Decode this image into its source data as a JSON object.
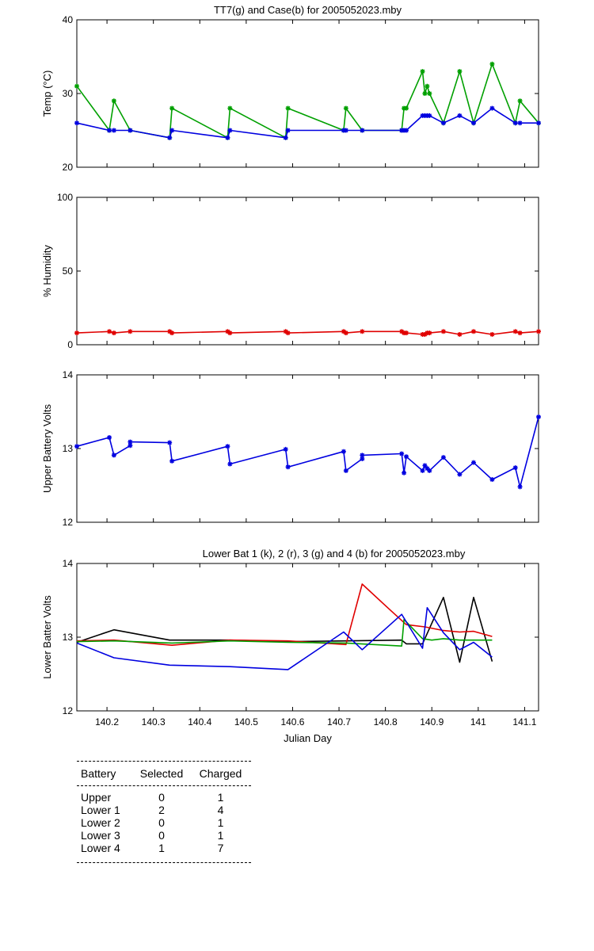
{
  "chart_data": [
    {
      "type": "line",
      "title": "TT7(g) and Case(b) for 2005052023.mby",
      "ylabel": "Temp  (°C)",
      "xlabel": "",
      "xlim": [
        140.135,
        141.13
      ],
      "ylim": [
        20,
        40
      ],
      "yticks": [
        20,
        30,
        40
      ],
      "grid": false,
      "series": [
        {
          "color": "#00a000",
          "markers": true,
          "x": [
            140.135,
            140.205,
            140.215,
            140.25,
            140.335,
            140.34,
            140.46,
            140.465,
            140.585,
            140.59,
            140.71,
            140.715,
            140.75,
            140.835,
            140.84,
            140.845,
            140.88,
            140.885,
            140.89,
            140.895,
            140.925,
            140.96,
            140.99,
            141.03,
            141.08,
            141.09,
            141.13
          ],
          "y": [
            31,
            25,
            29,
            25,
            24,
            28,
            24,
            28,
            24,
            28,
            25,
            28,
            25,
            25,
            28,
            28,
            33,
            30,
            31,
            30,
            26,
            33,
            26,
            34,
            26,
            29,
            26
          ]
        },
        {
          "color": "#0000e0",
          "markers": true,
          "x": [
            140.135,
            140.205,
            140.215,
            140.25,
            140.335,
            140.34,
            140.46,
            140.465,
            140.585,
            140.59,
            140.71,
            140.715,
            140.75,
            140.835,
            140.84,
            140.845,
            140.88,
            140.885,
            140.89,
            140.895,
            140.925,
            140.96,
            140.99,
            141.03,
            141.08,
            141.09,
            141.13
          ],
          "y": [
            26,
            25,
            25,
            25,
            24,
            25,
            24,
            25,
            24,
            25,
            25,
            25,
            25,
            25,
            25,
            25,
            27,
            27,
            27,
            27,
            26,
            27,
            26,
            28,
            26,
            26,
            26
          ]
        }
      ]
    },
    {
      "type": "line",
      "title": "",
      "ylabel": "% Humidity",
      "xlabel": "",
      "xlim": [
        140.135,
        141.13
      ],
      "ylim": [
        0,
        100
      ],
      "yticks": [
        0,
        50,
        100
      ],
      "grid": false,
      "series": [
        {
          "color": "#e00000",
          "markers": true,
          "x": [
            140.135,
            140.205,
            140.215,
            140.25,
            140.335,
            140.34,
            140.46,
            140.465,
            140.585,
            140.59,
            140.71,
            140.715,
            140.75,
            140.835,
            140.84,
            140.845,
            140.88,
            140.885,
            140.89,
            140.895,
            140.925,
            140.96,
            140.99,
            141.03,
            141.08,
            141.09,
            141.13
          ],
          "y": [
            8,
            9,
            8,
            9,
            9,
            8,
            9,
            8,
            9,
            8,
            9,
            8,
            9,
            9,
            8,
            8,
            7,
            7,
            8,
            8,
            9,
            7,
            9,
            7,
            9,
            8,
            9
          ]
        }
      ]
    },
    {
      "type": "line",
      "title": "",
      "ylabel": "Upper Battery Volts",
      "xlabel": "",
      "xlim": [
        140.135,
        141.13
      ],
      "ylim": [
        12,
        14
      ],
      "yticks": [
        12,
        13,
        14
      ],
      "grid": false,
      "series": [
        {
          "color": "#0000e0",
          "markers": true,
          "x": [
            140.135,
            140.205,
            140.215,
            140.25,
            140.25,
            140.335,
            140.34,
            140.46,
            140.465,
            140.585,
            140.59,
            140.71,
            140.715,
            140.75,
            140.75,
            140.835,
            140.84,
            140.845,
            140.88,
            140.885,
            140.89,
            140.895,
            140.925,
            140.96,
            140.99,
            141.03,
            141.08,
            141.09,
            141.13
          ],
          "y": [
            13.03,
            13.15,
            12.91,
            13.04,
            13.09,
            13.08,
            12.83,
            13.03,
            12.79,
            12.99,
            12.75,
            12.96,
            12.7,
            12.86,
            12.91,
            12.93,
            12.67,
            12.89,
            12.7,
            12.77,
            12.73,
            12.7,
            12.88,
            12.65,
            12.81,
            12.58,
            12.74,
            12.48,
            13.43
          ]
        }
      ]
    },
    {
      "type": "line",
      "title": "Lower Bat 1 (k), 2 (r), 3 (g) and 4 (b) for 2005052023.mby",
      "ylabel": "Lower Batter Volts",
      "xlabel": "Julian Day",
      "xlim": [
        140.135,
        141.13
      ],
      "ylim": [
        12,
        14
      ],
      "yticks": [
        12,
        13,
        14
      ],
      "xticks": [
        140.2,
        140.3,
        140.4,
        140.5,
        140.6,
        140.7,
        140.8,
        140.9,
        141,
        141.1
      ],
      "xticklabels": [
        "140.2",
        "140.3",
        "140.4",
        "140.5",
        "140.6",
        "140.7",
        "140.8",
        "140.9",
        "141",
        "141.1"
      ],
      "grid": false,
      "series": [
        {
          "color": "#000000",
          "markers": false,
          "x": [
            140.135,
            140.215,
            140.335,
            140.465,
            140.59,
            140.715,
            140.835,
            140.845,
            140.88,
            140.925,
            140.96,
            140.99,
            141.03
          ],
          "y": [
            12.93,
            13.1,
            12.96,
            12.96,
            12.94,
            12.95,
            12.96,
            12.91,
            12.91,
            13.54,
            12.66,
            13.54,
            12.67
          ]
        },
        {
          "color": "#e00000",
          "markers": false,
          "x": [
            140.135,
            140.215,
            140.34,
            140.465,
            140.59,
            140.715,
            140.72,
            140.75,
            140.81,
            140.845,
            140.885,
            140.925,
            140.96,
            140.99,
            141.03
          ],
          "y": [
            12.95,
            12.96,
            12.89,
            12.96,
            12.95,
            12.9,
            13.02,
            13.72,
            13.37,
            13.17,
            13.14,
            13.09,
            13.07,
            13.08,
            13.01
          ]
        },
        {
          "color": "#00a000",
          "markers": false,
          "x": [
            140.135,
            140.215,
            140.34,
            140.465,
            140.59,
            140.715,
            140.835,
            140.84,
            140.88,
            140.9,
            140.925,
            140.96,
            140.99,
            141.03
          ],
          "y": [
            12.94,
            12.95,
            12.92,
            12.95,
            12.93,
            12.92,
            12.88,
            13.24,
            12.98,
            12.96,
            12.98,
            12.96,
            12.96,
            12.96
          ]
        },
        {
          "color": "#0000e0",
          "markers": false,
          "x": [
            140.135,
            140.215,
            140.335,
            140.465,
            140.59,
            140.71,
            140.75,
            140.835,
            140.88,
            140.89,
            140.925,
            140.96,
            140.99,
            141.03
          ],
          "y": [
            12.92,
            12.72,
            12.62,
            12.6,
            12.56,
            13.07,
            12.83,
            13.31,
            12.85,
            13.4,
            13.06,
            12.83,
            12.93,
            12.73
          ]
        }
      ]
    }
  ],
  "table": {
    "headers": [
      "Battery",
      "Selected",
      "Charged"
    ],
    "rows": [
      [
        "Upper",
        "0",
        "1"
      ],
      [
        "Lower 1",
        "2",
        "4"
      ],
      [
        "Lower 2",
        "0",
        "1"
      ],
      [
        "Lower 3",
        "0",
        "1"
      ],
      [
        "Lower 4",
        "1",
        "7"
      ]
    ]
  }
}
